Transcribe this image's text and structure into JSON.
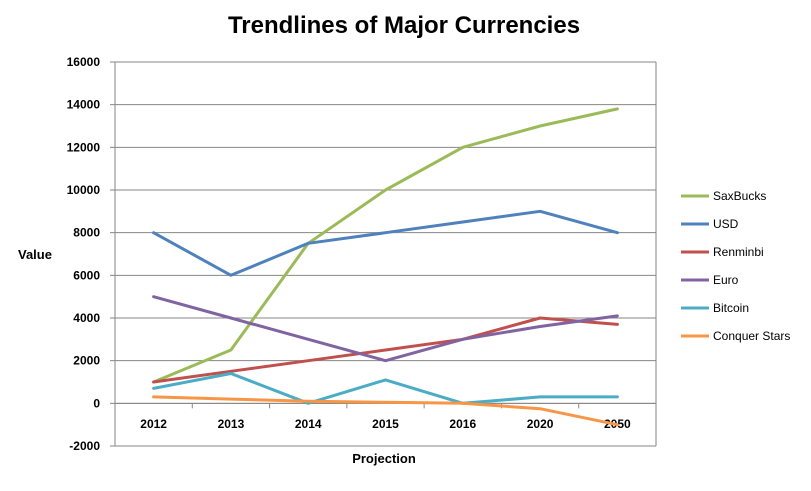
{
  "chart_data": {
    "type": "line",
    "title": "Trendlines of Major Currencies",
    "xlabel": "Projection",
    "ylabel": "Value",
    "categories": [
      "2012",
      "2013",
      "2014",
      "2015",
      "2016",
      "2020",
      "2050"
    ],
    "ylim": [
      -2000,
      16000
    ],
    "yticks": [
      -2000,
      0,
      2000,
      4000,
      6000,
      8000,
      10000,
      12000,
      14000,
      16000
    ],
    "grid": true,
    "legend": "right",
    "series": [
      {
        "name": "SaxBucks",
        "color": "#9bbb59",
        "values": [
          1000,
          2500,
          7500,
          10000,
          12000,
          13000,
          13800
        ]
      },
      {
        "name": "USD",
        "color": "#4f81bd",
        "values": [
          8000,
          6000,
          7500,
          8000,
          8500,
          9000,
          8000
        ]
      },
      {
        "name": "Renminbi",
        "color": "#c0504d",
        "values": [
          1000,
          1500,
          2000,
          2500,
          3000,
          4000,
          3700
        ]
      },
      {
        "name": "Euro",
        "color": "#8064a2",
        "values": [
          5000,
          4000,
          3000,
          2000,
          3000,
          3600,
          4100
        ]
      },
      {
        "name": "Bitcoin",
        "color": "#4bacc6",
        "values": [
          700,
          1400,
          0,
          1100,
          0,
          300,
          300
        ]
      },
      {
        "name": "Conquer Stars",
        "color": "#f79646",
        "values": [
          300,
          200,
          100,
          50,
          0,
          -250,
          -1000
        ]
      }
    ]
  }
}
